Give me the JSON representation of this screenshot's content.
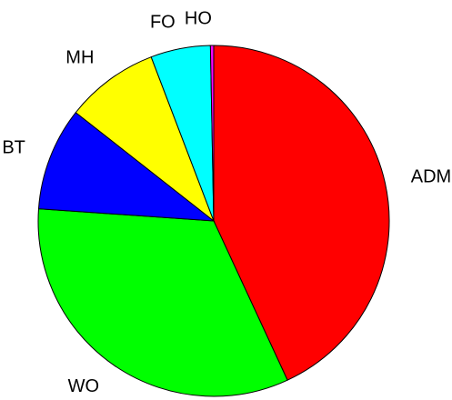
{
  "chart_data": {
    "type": "pie",
    "categories": [
      "ADM",
      "WO",
      "BT",
      "MH",
      "FO",
      "HO"
    ],
    "values": [
      43.1,
      33.0,
      9.5,
      8.6,
      5.5,
      0.3
    ],
    "colors": [
      "#ff0000",
      "#00ff00",
      "#0000ff",
      "#ffff00",
      "#00ffff",
      "#ff00ff"
    ]
  }
}
